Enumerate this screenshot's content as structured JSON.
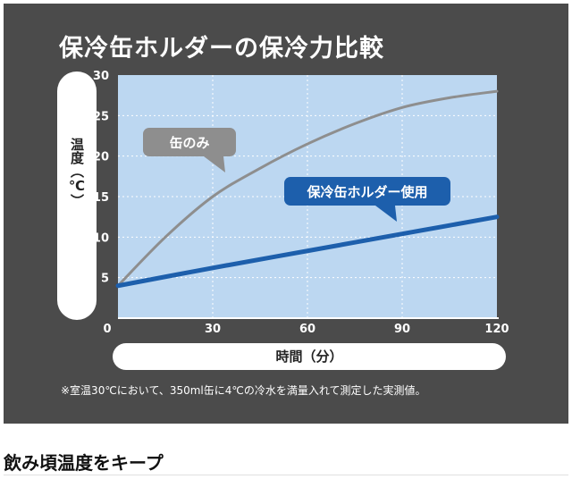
{
  "heading": "保冷缶ホルダーの保冷力比較",
  "footnote": "※室温30℃において、350ml缶に4℃の冷水を満量入れて測定した実測値。",
  "tagline": "飲み頃温度をキープ",
  "colors": {
    "panel": "#4b4b4b",
    "plot": "#bcd7f1",
    "grid": "#ffffff",
    "can_only": "#8e8e8e",
    "holder": "#1d5fac"
  },
  "chart_data": {
    "type": "line",
    "ylabel": "温度（℃）",
    "xlabel": "時間（分）",
    "xlim": [
      0,
      120
    ],
    "ylim": [
      0,
      30
    ],
    "x_ticks": [
      0,
      30,
      60,
      90,
      120
    ],
    "y_ticks": [
      5,
      10,
      15,
      20,
      25,
      30
    ],
    "grid": true,
    "series": [
      {
        "name": "缶のみ",
        "color": "#8e8e8e",
        "x": [
          0,
          15,
          30,
          45,
          60,
          75,
          90,
          105,
          120
        ],
        "y": [
          4,
          10,
          15,
          18.5,
          21.5,
          24,
          26,
          27.2,
          28
        ]
      },
      {
        "name": "保冷缶ホルダー使用",
        "color": "#1d5fac",
        "x": [
          0,
          30,
          60,
          90,
          120
        ],
        "y": [
          4,
          6.2,
          8.3,
          10.4,
          12.5
        ]
      }
    ]
  }
}
